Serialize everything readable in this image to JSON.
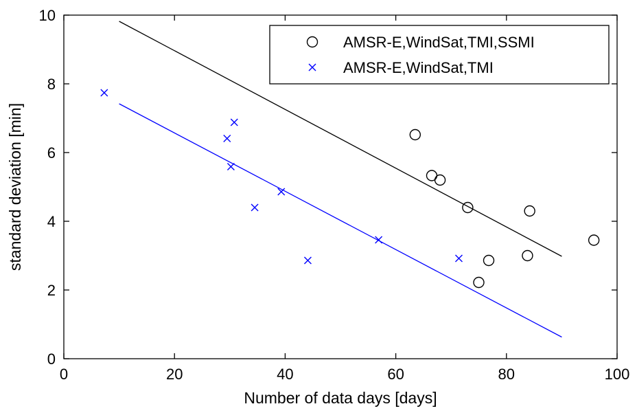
{
  "chart_data": {
    "type": "scatter",
    "title": "",
    "xlabel": "Number of data days [days]",
    "ylabel": "standard deviation [min]",
    "xlim": [
      0,
      100
    ],
    "ylim": [
      0,
      10
    ],
    "xticks": [
      0,
      20,
      40,
      60,
      80,
      100
    ],
    "yticks": [
      0,
      2,
      4,
      6,
      8,
      10
    ],
    "grid": false,
    "legend_position": "top-right",
    "series": [
      {
        "name": "AMSR-E,WindSat,TMI,SSMI",
        "marker": "circle",
        "color": "#000000",
        "points": [
          {
            "x": 63.5,
            "y": 6.52
          },
          {
            "x": 66.5,
            "y": 5.33
          },
          {
            "x": 68.0,
            "y": 5.2
          },
          {
            "x": 73.0,
            "y": 4.4
          },
          {
            "x": 75.0,
            "y": 2.22
          },
          {
            "x": 76.8,
            "y": 2.86
          },
          {
            "x": 83.8,
            "y": 3.0
          },
          {
            "x": 84.2,
            "y": 4.3
          },
          {
            "x": 95.8,
            "y": 3.45
          }
        ],
        "fit_line": [
          {
            "x": 10,
            "y": 9.82
          },
          {
            "x": 90,
            "y": 2.98
          }
        ]
      },
      {
        "name": "AMSR-E,WindSat,TMI",
        "marker": "x",
        "color": "#0000ff",
        "points": [
          {
            "x": 7.3,
            "y": 7.74
          },
          {
            "x": 29.5,
            "y": 6.41
          },
          {
            "x": 30.8,
            "y": 6.88
          },
          {
            "x": 30.2,
            "y": 5.59
          },
          {
            "x": 34.5,
            "y": 4.4
          },
          {
            "x": 39.3,
            "y": 4.86
          },
          {
            "x": 44.1,
            "y": 2.86
          },
          {
            "x": 56.9,
            "y": 3.46
          },
          {
            "x": 71.4,
            "y": 2.92
          }
        ],
        "fit_line": [
          {
            "x": 10,
            "y": 7.42
          },
          {
            "x": 90,
            "y": 0.63
          }
        ]
      }
    ]
  }
}
